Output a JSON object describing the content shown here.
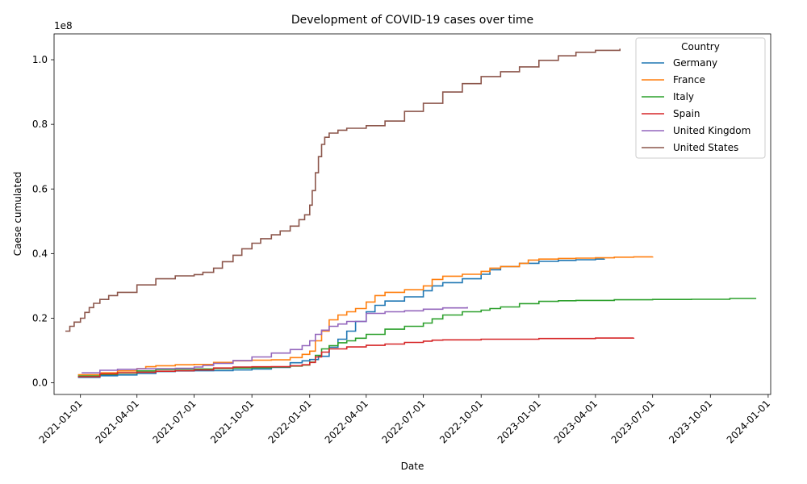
{
  "chart_data": {
    "type": "line",
    "title": "Development of COVID-19 cases over time",
    "xlabel": "Date",
    "ylabel": "Caese cumulated",
    "y_offset_label": "1e8",
    "y_scale": 100000000,
    "xlim": [
      "2020-11-20",
      "2024-01-05"
    ],
    "ylim": [
      -3600000,
      108000000
    ],
    "x_ticks": [
      "2021-01-01",
      "2021-04-01",
      "2021-07-01",
      "2021-10-01",
      "2022-01-01",
      "2022-04-01",
      "2022-07-01",
      "2022-10-01",
      "2023-01-01",
      "2023-04-01",
      "2023-07-01",
      "2023-10-01",
      "2024-01-01"
    ],
    "y_ticks": [
      0,
      20000000,
      40000000,
      60000000,
      80000000,
      100000000
    ],
    "y_tick_labels": [
      "0.0",
      "0.2",
      "0.4",
      "0.6",
      "0.8",
      "1.0"
    ],
    "legend": {
      "title": "Country",
      "position": "top-right"
    },
    "grid": false,
    "series": [
      {
        "name": "Germany",
        "color": "#1f77b4",
        "step": true,
        "points": [
          [
            "2020-12-28",
            1700000
          ],
          [
            "2021-02-01",
            2200000
          ],
          [
            "2021-03-01",
            2450000
          ],
          [
            "2021-04-01",
            2900000
          ],
          [
            "2021-05-01",
            3500000
          ],
          [
            "2021-06-01",
            3700000
          ],
          [
            "2021-07-01",
            3740000
          ],
          [
            "2021-08-01",
            3800000
          ],
          [
            "2021-09-01",
            4000000
          ],
          [
            "2021-10-01",
            4300000
          ],
          [
            "2021-11-01",
            4800000
          ],
          [
            "2021-12-01",
            6200000
          ],
          [
            "2021-12-20",
            6800000
          ],
          [
            "2022-01-01",
            7200000
          ],
          [
            "2022-01-15",
            8200000
          ],
          [
            "2022-02-01",
            11000000
          ],
          [
            "2022-02-15",
            13500000
          ],
          [
            "2022-03-01",
            16000000
          ],
          [
            "2022-03-15",
            19000000
          ],
          [
            "2022-04-01",
            22000000
          ],
          [
            "2022-04-15",
            24000000
          ],
          [
            "2022-05-01",
            25300000
          ],
          [
            "2022-06-01",
            26600000
          ],
          [
            "2022-07-01",
            28500000
          ],
          [
            "2022-07-15",
            30000000
          ],
          [
            "2022-08-01",
            31000000
          ],
          [
            "2022-09-01",
            32200000
          ],
          [
            "2022-10-01",
            33600000
          ],
          [
            "2022-10-15",
            35000000
          ],
          [
            "2022-11-01",
            36000000
          ],
          [
            "2022-12-01",
            37000000
          ],
          [
            "2023-01-01",
            37600000
          ],
          [
            "2023-02-01",
            37900000
          ],
          [
            "2023-03-01",
            38100000
          ],
          [
            "2023-04-01",
            38300000
          ],
          [
            "2023-04-15",
            38400000
          ]
        ]
      },
      {
        "name": "France",
        "color": "#ff7f0e",
        "step": true,
        "points": [
          [
            "2020-12-28",
            2500000
          ],
          [
            "2021-02-01",
            3100000
          ],
          [
            "2021-03-01",
            3700000
          ],
          [
            "2021-04-01",
            4400000
          ],
          [
            "2021-04-15",
            5000000
          ],
          [
            "2021-05-01",
            5300000
          ],
          [
            "2021-06-01",
            5600000
          ],
          [
            "2021-07-01",
            5700000
          ],
          [
            "2021-08-01",
            6300000
          ],
          [
            "2021-09-01",
            6800000
          ],
          [
            "2021-10-01",
            7000000
          ],
          [
            "2021-11-01",
            7100000
          ],
          [
            "2021-12-01",
            7800000
          ],
          [
            "2021-12-20",
            8800000
          ],
          [
            "2022-01-01",
            9800000
          ],
          [
            "2022-01-10",
            13000000
          ],
          [
            "2022-01-20",
            16000000
          ],
          [
            "2022-02-01",
            19500000
          ],
          [
            "2022-02-15",
            21000000
          ],
          [
            "2022-03-01",
            22000000
          ],
          [
            "2022-03-15",
            23000000
          ],
          [
            "2022-04-01",
            25000000
          ],
          [
            "2022-04-15",
            27000000
          ],
          [
            "2022-05-01",
            28000000
          ],
          [
            "2022-06-01",
            28800000
          ],
          [
            "2022-07-01",
            30000000
          ],
          [
            "2022-07-15",
            32000000
          ],
          [
            "2022-08-01",
            33000000
          ],
          [
            "2022-09-01",
            33600000
          ],
          [
            "2022-10-01",
            34500000
          ],
          [
            "2022-10-15",
            35500000
          ],
          [
            "2022-11-01",
            36000000
          ],
          [
            "2022-12-01",
            37000000
          ],
          [
            "2022-12-15",
            38000000
          ],
          [
            "2023-01-01",
            38300000
          ],
          [
            "2023-02-01",
            38500000
          ],
          [
            "2023-03-01",
            38600000
          ],
          [
            "2023-04-01",
            38700000
          ],
          [
            "2023-05-01",
            38900000
          ],
          [
            "2023-06-01",
            39000000
          ],
          [
            "2023-07-01",
            39100000
          ]
        ]
      },
      {
        "name": "Italy",
        "color": "#2ca02c",
        "step": true,
        "points": [
          [
            "2020-12-28",
            2100000
          ],
          [
            "2021-02-01",
            2600000
          ],
          [
            "2021-03-01",
            3000000
          ],
          [
            "2021-04-01",
            3700000
          ],
          [
            "2021-05-01",
            4150000
          ],
          [
            "2021-06-01",
            4250000
          ],
          [
            "2021-07-01",
            4280000
          ],
          [
            "2021-08-01",
            4450000
          ],
          [
            "2021-09-01",
            4600000
          ],
          [
            "2021-10-01",
            4700000
          ],
          [
            "2021-11-01",
            4900000
          ],
          [
            "2021-12-01",
            5200000
          ],
          [
            "2021-12-20",
            5500000
          ],
          [
            "2022-01-01",
            6400000
          ],
          [
            "2022-01-10",
            8500000
          ],
          [
            "2022-01-20",
            10500000
          ],
          [
            "2022-02-01",
            11500000
          ],
          [
            "2022-02-15",
            12400000
          ],
          [
            "2022-03-01",
            13000000
          ],
          [
            "2022-03-15",
            13800000
          ],
          [
            "2022-04-01",
            15000000
          ],
          [
            "2022-05-01",
            16600000
          ],
          [
            "2022-06-01",
            17500000
          ],
          [
            "2022-07-01",
            18500000
          ],
          [
            "2022-07-15",
            19800000
          ],
          [
            "2022-08-01",
            21000000
          ],
          [
            "2022-09-01",
            22000000
          ],
          [
            "2022-10-01",
            22500000
          ],
          [
            "2022-10-15",
            23000000
          ],
          [
            "2022-11-01",
            23500000
          ],
          [
            "2022-12-01",
            24500000
          ],
          [
            "2023-01-01",
            25200000
          ],
          [
            "2023-02-01",
            25400000
          ],
          [
            "2023-03-01",
            25500000
          ],
          [
            "2023-05-01",
            25700000
          ],
          [
            "2023-07-01",
            25800000
          ],
          [
            "2023-09-01",
            25850000
          ],
          [
            "2023-11-01",
            26100000
          ],
          [
            "2023-12-12",
            26300000
          ]
        ]
      },
      {
        "name": "Spain",
        "color": "#d62728",
        "step": true,
        "points": [
          [
            "2020-12-28",
            1900000
          ],
          [
            "2021-02-01",
            2800000
          ],
          [
            "2021-03-01",
            3150000
          ],
          [
            "2021-04-01",
            3300000
          ],
          [
            "2021-05-01",
            3600000
          ],
          [
            "2021-06-01",
            3750000
          ],
          [
            "2021-07-01",
            4000000
          ],
          [
            "2021-08-01",
            4600000
          ],
          [
            "2021-09-01",
            4900000
          ],
          [
            "2021-10-01",
            4970000
          ],
          [
            "2021-11-01",
            5000000
          ],
          [
            "2021-12-01",
            5300000
          ],
          [
            "2021-12-20",
            5600000
          ],
          [
            "2022-01-01",
            6300000
          ],
          [
            "2022-01-10",
            8000000
          ],
          [
            "2022-01-20",
            9500000
          ],
          [
            "2022-02-01",
            10500000
          ],
          [
            "2022-03-01",
            11100000
          ],
          [
            "2022-04-01",
            11600000
          ],
          [
            "2022-05-01",
            12000000
          ],
          [
            "2022-06-01",
            12500000
          ],
          [
            "2022-07-01",
            12900000
          ],
          [
            "2022-07-15",
            13200000
          ],
          [
            "2022-08-01",
            13300000
          ],
          [
            "2022-10-01",
            13500000
          ],
          [
            "2023-01-01",
            13700000
          ],
          [
            "2023-04-01",
            13850000
          ],
          [
            "2023-06-01",
            13950000
          ]
        ]
      },
      {
        "name": "United Kingdom",
        "color": "#9467bd",
        "step": true,
        "points": [
          [
            "2021-01-03",
            3100000
          ],
          [
            "2021-02-01",
            3900000
          ],
          [
            "2021-03-01",
            4200000
          ],
          [
            "2021-04-01",
            4350000
          ],
          [
            "2021-05-01",
            4400000
          ],
          [
            "2021-06-01",
            4500000
          ],
          [
            "2021-07-01",
            4900000
          ],
          [
            "2021-07-15",
            5400000
          ],
          [
            "2021-08-01",
            6000000
          ],
          [
            "2021-09-01",
            6900000
          ],
          [
            "2021-10-01",
            8000000
          ],
          [
            "2021-11-01",
            9200000
          ],
          [
            "2021-12-01",
            10300000
          ],
          [
            "2021-12-20",
            11500000
          ],
          [
            "2022-01-01",
            13000000
          ],
          [
            "2022-01-10",
            15000000
          ],
          [
            "2022-01-20",
            16300000
          ],
          [
            "2022-02-01",
            17500000
          ],
          [
            "2022-02-15",
            18200000
          ],
          [
            "2022-03-01",
            19000000
          ],
          [
            "2022-04-01",
            21500000
          ],
          [
            "2022-05-01",
            22000000
          ],
          [
            "2022-06-01",
            22300000
          ],
          [
            "2022-07-01",
            22800000
          ],
          [
            "2022-08-01",
            23200000
          ],
          [
            "2022-09-09",
            23500000
          ]
        ]
      },
      {
        "name": "United States",
        "color": "#8c564b",
        "step": true,
        "points": [
          [
            "2020-12-08",
            16000000
          ],
          [
            "2020-12-15",
            17500000
          ],
          [
            "2020-12-22",
            18800000
          ],
          [
            "2021-01-01",
            20000000
          ],
          [
            "2021-01-08",
            21800000
          ],
          [
            "2021-01-15",
            23300000
          ],
          [
            "2021-01-22",
            24600000
          ],
          [
            "2021-02-01",
            25800000
          ],
          [
            "2021-02-15",
            27000000
          ],
          [
            "2021-03-01",
            28000000
          ],
          [
            "2021-04-01",
            30300000
          ],
          [
            "2021-05-01",
            32200000
          ],
          [
            "2021-06-01",
            33100000
          ],
          [
            "2021-07-01",
            33500000
          ],
          [
            "2021-07-15",
            34200000
          ],
          [
            "2021-08-01",
            35500000
          ],
          [
            "2021-08-15",
            37500000
          ],
          [
            "2021-09-01",
            39500000
          ],
          [
            "2021-09-15",
            41500000
          ],
          [
            "2021-10-01",
            43200000
          ],
          [
            "2021-10-15",
            44600000
          ],
          [
            "2021-11-01",
            45800000
          ],
          [
            "2021-11-15",
            47000000
          ],
          [
            "2021-12-01",
            48500000
          ],
          [
            "2021-12-15",
            50500000
          ],
          [
            "2021-12-24",
            52000000
          ],
          [
            "2022-01-01",
            55000000
          ],
          [
            "2022-01-05",
            59500000
          ],
          [
            "2022-01-10",
            65000000
          ],
          [
            "2022-01-15",
            70000000
          ],
          [
            "2022-01-20",
            73800000
          ],
          [
            "2022-01-25",
            76000000
          ],
          [
            "2022-02-01",
            77300000
          ],
          [
            "2022-02-15",
            78200000
          ],
          [
            "2022-03-01",
            78800000
          ],
          [
            "2022-04-01",
            79600000
          ],
          [
            "2022-05-01",
            81000000
          ],
          [
            "2022-06-01",
            84000000
          ],
          [
            "2022-07-01",
            86500000
          ],
          [
            "2022-08-01",
            90000000
          ],
          [
            "2022-09-01",
            92600000
          ],
          [
            "2022-10-01",
            94800000
          ],
          [
            "2022-11-01",
            96300000
          ],
          [
            "2022-12-01",
            97800000
          ],
          [
            "2023-01-01",
            99800000
          ],
          [
            "2023-02-01",
            101200000
          ],
          [
            "2023-03-01",
            102300000
          ],
          [
            "2023-04-01",
            102900000
          ],
          [
            "2023-05-10",
            103400000
          ]
        ]
      }
    ]
  }
}
